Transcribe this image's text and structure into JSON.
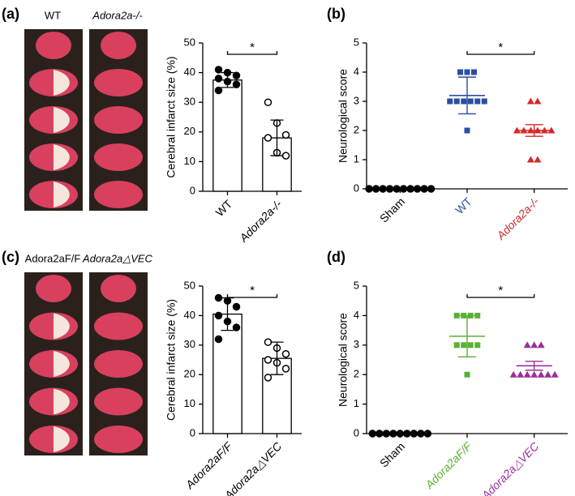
{
  "chart_data": [
    {
      "type": "bar",
      "panel": "(a)",
      "image_labels": [
        "WT",
        "Adora2a-/-"
      ],
      "ylabel": "Cerebral infarct size (%)",
      "categories": [
        "WT",
        "Adora2a-/-"
      ],
      "values": [
        37.5,
        18
      ],
      "errors": [
        2.5,
        6
      ],
      "points": [
        [
          41,
          40,
          39,
          38,
          37,
          36,
          34
        ],
        [
          30,
          23,
          19,
          18,
          13,
          12
        ]
      ],
      "point_styles": [
        "filled-circle",
        "open-circle"
      ],
      "ylim": [
        0,
        50
      ],
      "yticks": [
        0,
        10,
        20,
        30,
        40,
        50
      ],
      "annotation": "*",
      "bracket": [
        0,
        1
      ]
    },
    {
      "type": "dot",
      "panel": "(b)",
      "ylabel": "Neurological score",
      "categories": [
        "Sham",
        "WT",
        "Adora2a-/-"
      ],
      "colors": [
        "#000000",
        "#2b4ea2",
        "#d62828"
      ],
      "markers": [
        "circle",
        "square",
        "triangle"
      ],
      "points": [
        [
          0,
          0,
          0,
          0,
          0,
          0,
          0,
          0,
          0,
          0
        ],
        [
          4,
          4,
          4,
          3,
          3,
          3,
          3,
          3,
          3,
          2
        ],
        [
          3,
          3,
          2,
          2,
          2,
          2,
          2,
          2,
          1,
          1
        ]
      ],
      "means": [
        0,
        3.2,
        2.0
      ],
      "errors": [
        0,
        0.63,
        0.2
      ],
      "ylim": [
        0,
        5
      ],
      "yticks": [
        0,
        1,
        2,
        3,
        4,
        5
      ],
      "annotation": "*",
      "bracket": [
        1,
        2
      ]
    },
    {
      "type": "bar",
      "panel": "(c)",
      "image_labels": [
        "Adora2aF/F",
        "Adora2a△VEC"
      ],
      "ylabel": "Cerebral infarct size (%)",
      "categories": [
        "Adora2aF/F",
        "Adora2a△VEC"
      ],
      "values": [
        40.5,
        25.5
      ],
      "errors": [
        5.5,
        5.5
      ],
      "points": [
        [
          46,
          45,
          43,
          40,
          38,
          36,
          32
        ],
        [
          31,
          29,
          27,
          25,
          24,
          22,
          19
        ]
      ],
      "point_styles": [
        "filled-circle",
        "open-circle"
      ],
      "ylim": [
        0,
        50
      ],
      "yticks": [
        0,
        10,
        20,
        30,
        40,
        50
      ],
      "annotation": "*",
      "bracket": [
        0,
        1
      ]
    },
    {
      "type": "dot",
      "panel": "(d)",
      "ylabel": "Neurological score",
      "categories": [
        "Sham",
        "Adora2aF/F",
        "Adora2a△VEC"
      ],
      "colors": [
        "#000000",
        "#5ab034",
        "#9b2f9c"
      ],
      "markers": [
        "circle",
        "square",
        "triangle"
      ],
      "points": [
        [
          0,
          0,
          0,
          0,
          0,
          0,
          0,
          0,
          0
        ],
        [
          4,
          4,
          4,
          4,
          3,
          3,
          3,
          3,
          2
        ],
        [
          3,
          3,
          3,
          2,
          2,
          2,
          2,
          2,
          2,
          2
        ]
      ],
      "means": [
        0,
        3.3,
        2.3
      ],
      "errors": [
        0,
        0.7,
        0.15
      ],
      "ylim": [
        0,
        5
      ],
      "yticks": [
        0,
        1,
        2,
        3,
        4,
        5
      ],
      "annotation": "*",
      "bracket": [
        1,
        2
      ]
    }
  ]
}
